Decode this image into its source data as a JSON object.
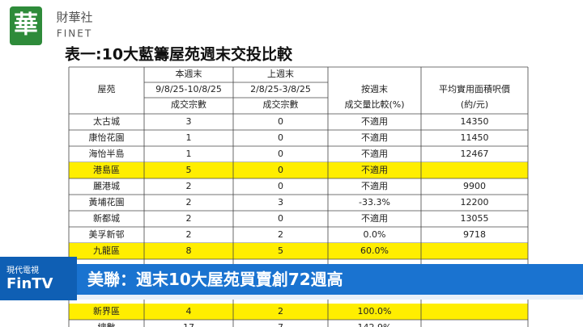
{
  "header": {
    "logo_char": "華",
    "brand": "財華社",
    "brand_en": "FINET"
  },
  "table": {
    "title": "表一:10大藍籌屋苑週末交投比較",
    "head": {
      "estate": "屋苑",
      "this_week": [
        "本週末",
        "9/8/25-10/8/25",
        "成交宗數"
      ],
      "last_week": [
        "上週末",
        "2/8/25-3/8/25",
        "成交宗數"
      ],
      "compare": [
        "按週末",
        "成交量比較(%)"
      ],
      "price": [
        "平均實用面積呎價",
        "(約/元)"
      ]
    },
    "rows": [
      {
        "cells": [
          "太古城",
          "3",
          "0",
          "不適用",
          "14350"
        ]
      },
      {
        "cells": [
          "康怡花園",
          "1",
          "0",
          "不適用",
          "11450"
        ]
      },
      {
        "cells": [
          "海怡半島",
          "1",
          "0",
          "不適用",
          "12467"
        ]
      },
      {
        "cells": [
          "港島區",
          "5",
          "0",
          "不適用",
          ""
        ],
        "highlight": true
      },
      {
        "cells": [
          "麗港城",
          "2",
          "0",
          "不適用",
          "9900"
        ]
      },
      {
        "cells": [
          "黃埔花園",
          "2",
          "3",
          "-33.3%",
          "12200"
        ]
      },
      {
        "cells": [
          "新都城",
          "2",
          "0",
          "不適用",
          "13055"
        ]
      },
      {
        "cells": [
          "美孚新邨",
          "2",
          "2",
          "0.0%",
          "9718"
        ]
      },
      {
        "cells": [
          "九龍區",
          "8",
          "5",
          "60.0%",
          ""
        ],
        "highlight": true
      }
    ],
    "rows_lower": [
      {
        "cells": [
          "新界區",
          "4",
          "2",
          "100.0%",
          ""
        ],
        "highlight": true
      },
      {
        "cells": [
          "總數",
          "17",
          "7",
          "142.9%",
          ""
        ]
      }
    ]
  },
  "banner": {
    "channel": "現代電視",
    "channel_en": "FinTV",
    "headline": "美聯：週末10大屋苑買賣創72週高"
  }
}
